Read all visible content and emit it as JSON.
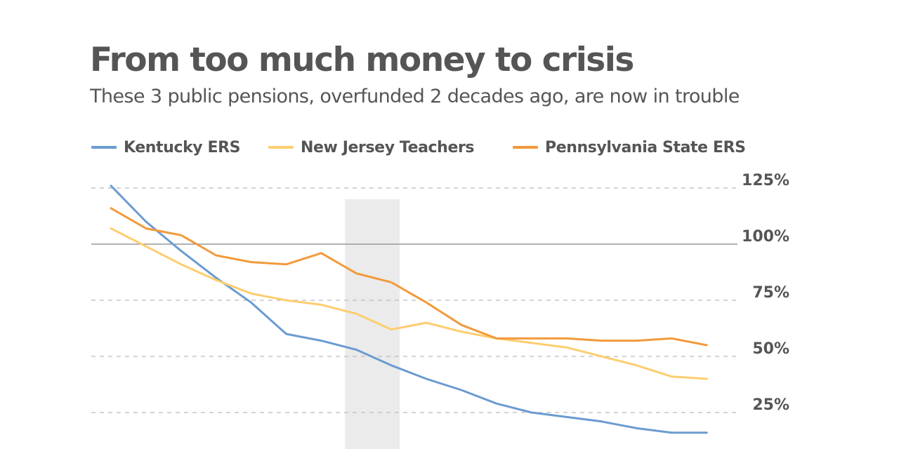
{
  "colors": {
    "text": "#555555",
    "kentucky": "#6b9bd1",
    "new_jersey": "#fdcd6f",
    "pennsylvania": "#f29a3b",
    "recession_band": "#ebebeb",
    "gridline": "#bbbbbb",
    "reference_line": "#999999"
  },
  "chart_data": {
    "type": "line",
    "title": "From too much money to crisis",
    "subtitle": "These 3 public pensions, overfunded 2 decades ago, are now in trouble",
    "xlabel": "",
    "ylabel": "",
    "y_axis_position": "right",
    "ylim": [
      0,
      130
    ],
    "yticks": [
      25,
      50,
      75,
      100,
      125
    ],
    "ytick_labels": [
      "25%",
      "50%",
      "75%",
      "100%",
      "125%"
    ],
    "reference_line": 100,
    "grid": "dashed horizontal",
    "legend_position": "top-left",
    "x": [
      0,
      1,
      2,
      3,
      4,
      5,
      6,
      7,
      8,
      9,
      10,
      11,
      12,
      13,
      14,
      15,
      16,
      17
    ],
    "shaded_x_range": [
      7.0,
      8.0
    ],
    "series": [
      {
        "name": "Kentucky ERS",
        "color": "#6b9bd1",
        "values": [
          126,
          110,
          97,
          85,
          74,
          60,
          57,
          53,
          46,
          40,
          35,
          29,
          25,
          23,
          21,
          18,
          16,
          16
        ]
      },
      {
        "name": "New Jersey Teachers",
        "color": "#fdcd6f",
        "values": [
          107,
          99,
          91,
          84,
          78,
          75,
          73,
          69,
          62,
          65,
          61,
          58,
          56,
          54,
          50,
          46,
          41,
          40
        ]
      },
      {
        "name": "Pennsylvania State ERS",
        "color": "#f29a3b",
        "values": [
          116,
          107,
          104,
          95,
          92,
          91,
          96,
          87,
          83,
          74,
          64,
          58,
          58,
          58,
          57,
          57,
          58,
          55
        ]
      }
    ]
  }
}
